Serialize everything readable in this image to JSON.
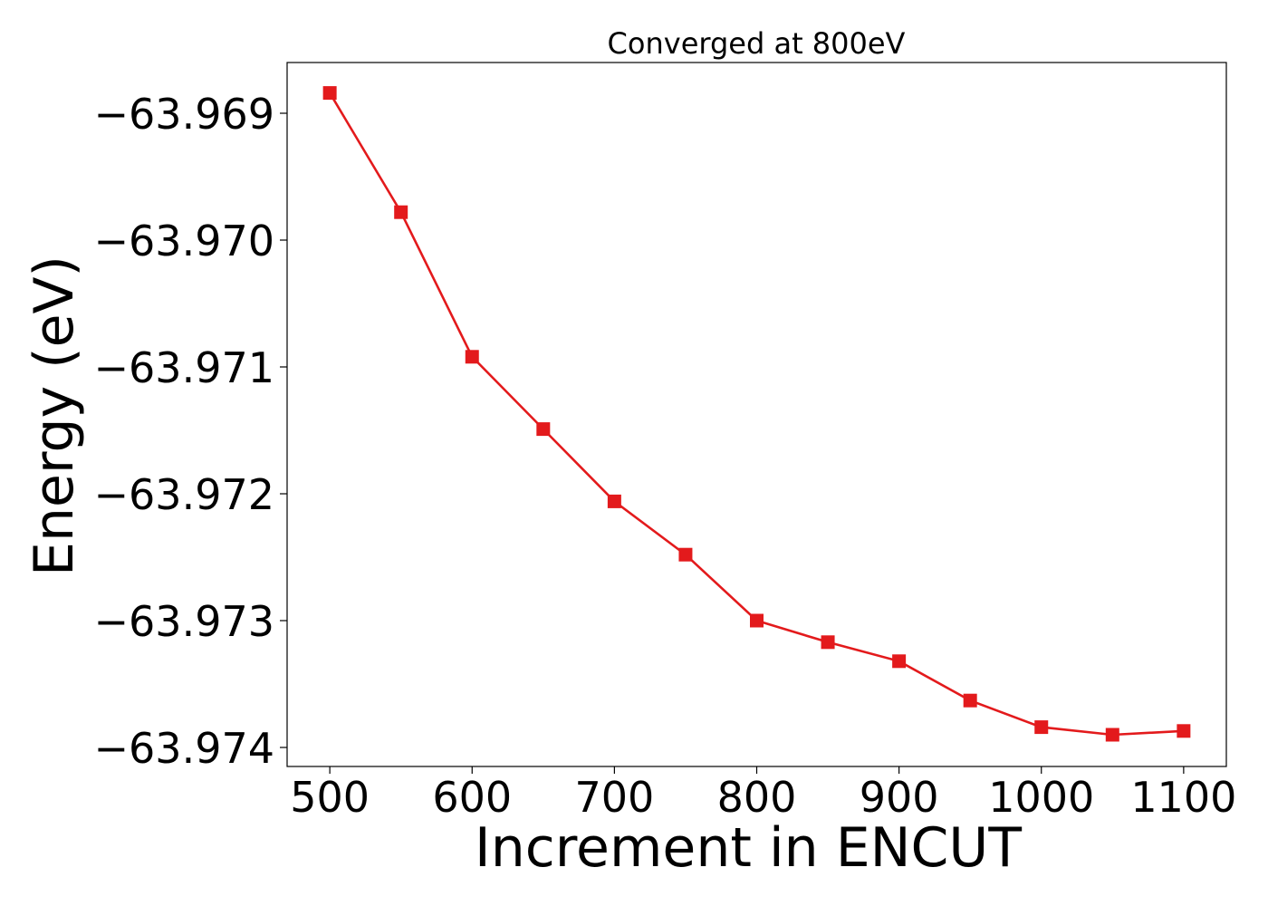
{
  "chart_data": {
    "type": "line",
    "title": "Converged at 800eV",
    "xlabel": "Increment in ENCUT",
    "ylabel": "Energy (eV)",
    "xlim": [
      470,
      1130
    ],
    "ylim": [
      -63.97415,
      -63.9686
    ],
    "x_ticks": [
      500,
      600,
      700,
      800,
      900,
      1000,
      1100
    ],
    "y_ticks": [
      -63.969,
      -63.97,
      -63.971,
      -63.972,
      -63.973,
      -63.974
    ],
    "x_tick_labels": [
      "500",
      "600",
      "700",
      "800",
      "900",
      "1000",
      "1100"
    ],
    "y_tick_labels": [
      "−63.969",
      "−63.970",
      "−63.971",
      "−63.972",
      "−63.973",
      "−63.974"
    ],
    "grid": false,
    "series": [
      {
        "color": "#e31a1c",
        "marker": "square",
        "x": [
          500,
          550,
          600,
          650,
          700,
          750,
          800,
          850,
          900,
          950,
          1000,
          1050,
          1100
        ],
        "y": [
          -63.96884,
          -63.96978,
          -63.97092,
          -63.97149,
          -63.97206,
          -63.97248,
          -63.973,
          -63.97317,
          -63.97332,
          -63.97363,
          -63.97384,
          -63.9739,
          -63.97387
        ]
      }
    ]
  }
}
